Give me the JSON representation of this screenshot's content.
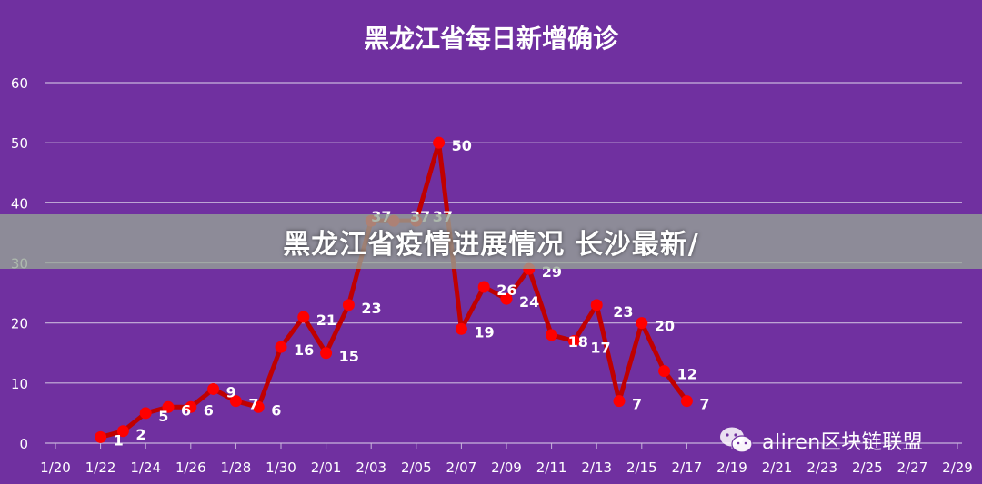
{
  "chart_data": {
    "type": "line",
    "title": "黑龙江省每日新增确诊",
    "xlabel": "",
    "ylabel": "",
    "ylim": [
      0,
      60
    ],
    "yticks": [
      0,
      10,
      20,
      30,
      40,
      50,
      60
    ],
    "grid": true,
    "x_tick_labels": [
      "1/20",
      "1/22",
      "1/24",
      "1/26",
      "1/28",
      "1/30",
      "2/01",
      "2/03",
      "2/05",
      "2/07",
      "2/09",
      "2/11",
      "2/13",
      "2/15",
      "2/17",
      "2/19",
      "2/21",
      "2/23",
      "2/25",
      "2/27",
      "2/29"
    ],
    "x_day_span": 40,
    "points": [
      {
        "day": 2,
        "value": 1,
        "label": "1"
      },
      {
        "day": 3,
        "value": 2,
        "label": "2"
      },
      {
        "day": 4,
        "value": 5,
        "label": "5"
      },
      {
        "day": 5,
        "value": 6,
        "label": "6"
      },
      {
        "day": 6,
        "value": 6,
        "label": "6"
      },
      {
        "day": 7,
        "value": 9,
        "label": "9"
      },
      {
        "day": 8,
        "value": 7,
        "label": "7"
      },
      {
        "day": 9,
        "value": 6,
        "label": "6"
      },
      {
        "day": 10,
        "value": 16,
        "label": "16"
      },
      {
        "day": 11,
        "value": 21,
        "label": "21"
      },
      {
        "day": 12,
        "value": 15,
        "label": "15"
      },
      {
        "day": 13,
        "value": 23,
        "label": "23"
      },
      {
        "day": 14,
        "value": 37,
        "label": "37"
      },
      {
        "day": 15,
        "value": 37,
        "label": "37"
      },
      {
        "day": 16,
        "value": 37,
        "label": "37"
      },
      {
        "day": 17,
        "value": 50,
        "label": "50"
      },
      {
        "day": 18,
        "value": 19,
        "label": "19"
      },
      {
        "day": 19,
        "value": 26,
        "label": "26"
      },
      {
        "day": 20,
        "value": 24,
        "label": "24"
      },
      {
        "day": 21,
        "value": 29,
        "label": "29"
      },
      {
        "day": 22,
        "value": 18,
        "label": "18"
      },
      {
        "day": 23,
        "value": 17,
        "label": "17"
      },
      {
        "day": 24,
        "value": 23,
        "label": "23"
      },
      {
        "day": 25,
        "value": 7,
        "label": "7"
      },
      {
        "day": 26,
        "value": 20,
        "label": "20"
      },
      {
        "day": 27,
        "value": 12,
        "label": "12"
      },
      {
        "day": 28,
        "value": 7,
        "label": "7"
      }
    ],
    "colors": {
      "background": "#7030a0",
      "line": "#c00000",
      "marker": "#ff0000",
      "grid": "#c8b4dc",
      "text": "#ffffff"
    }
  },
  "banner": {
    "text": "黑龙江省疫情进展情况 长沙最新/"
  },
  "watermark": {
    "text": "aliren区块链联盟",
    "icon": "wechat-icon"
  }
}
